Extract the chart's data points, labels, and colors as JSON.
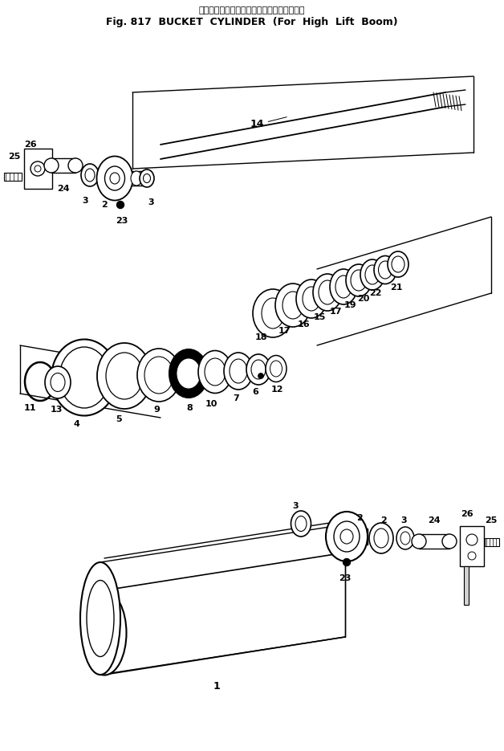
{
  "title_jp": "バケット　シリンダ（ハイリフトブーム用）",
  "title_en": "Fig. 817  BUCKET  CYLINDER  (For  High  Lift  Boom)",
  "bg_color": "#ffffff",
  "fig_width": 6.28,
  "fig_height": 9.35,
  "dpi": 100
}
